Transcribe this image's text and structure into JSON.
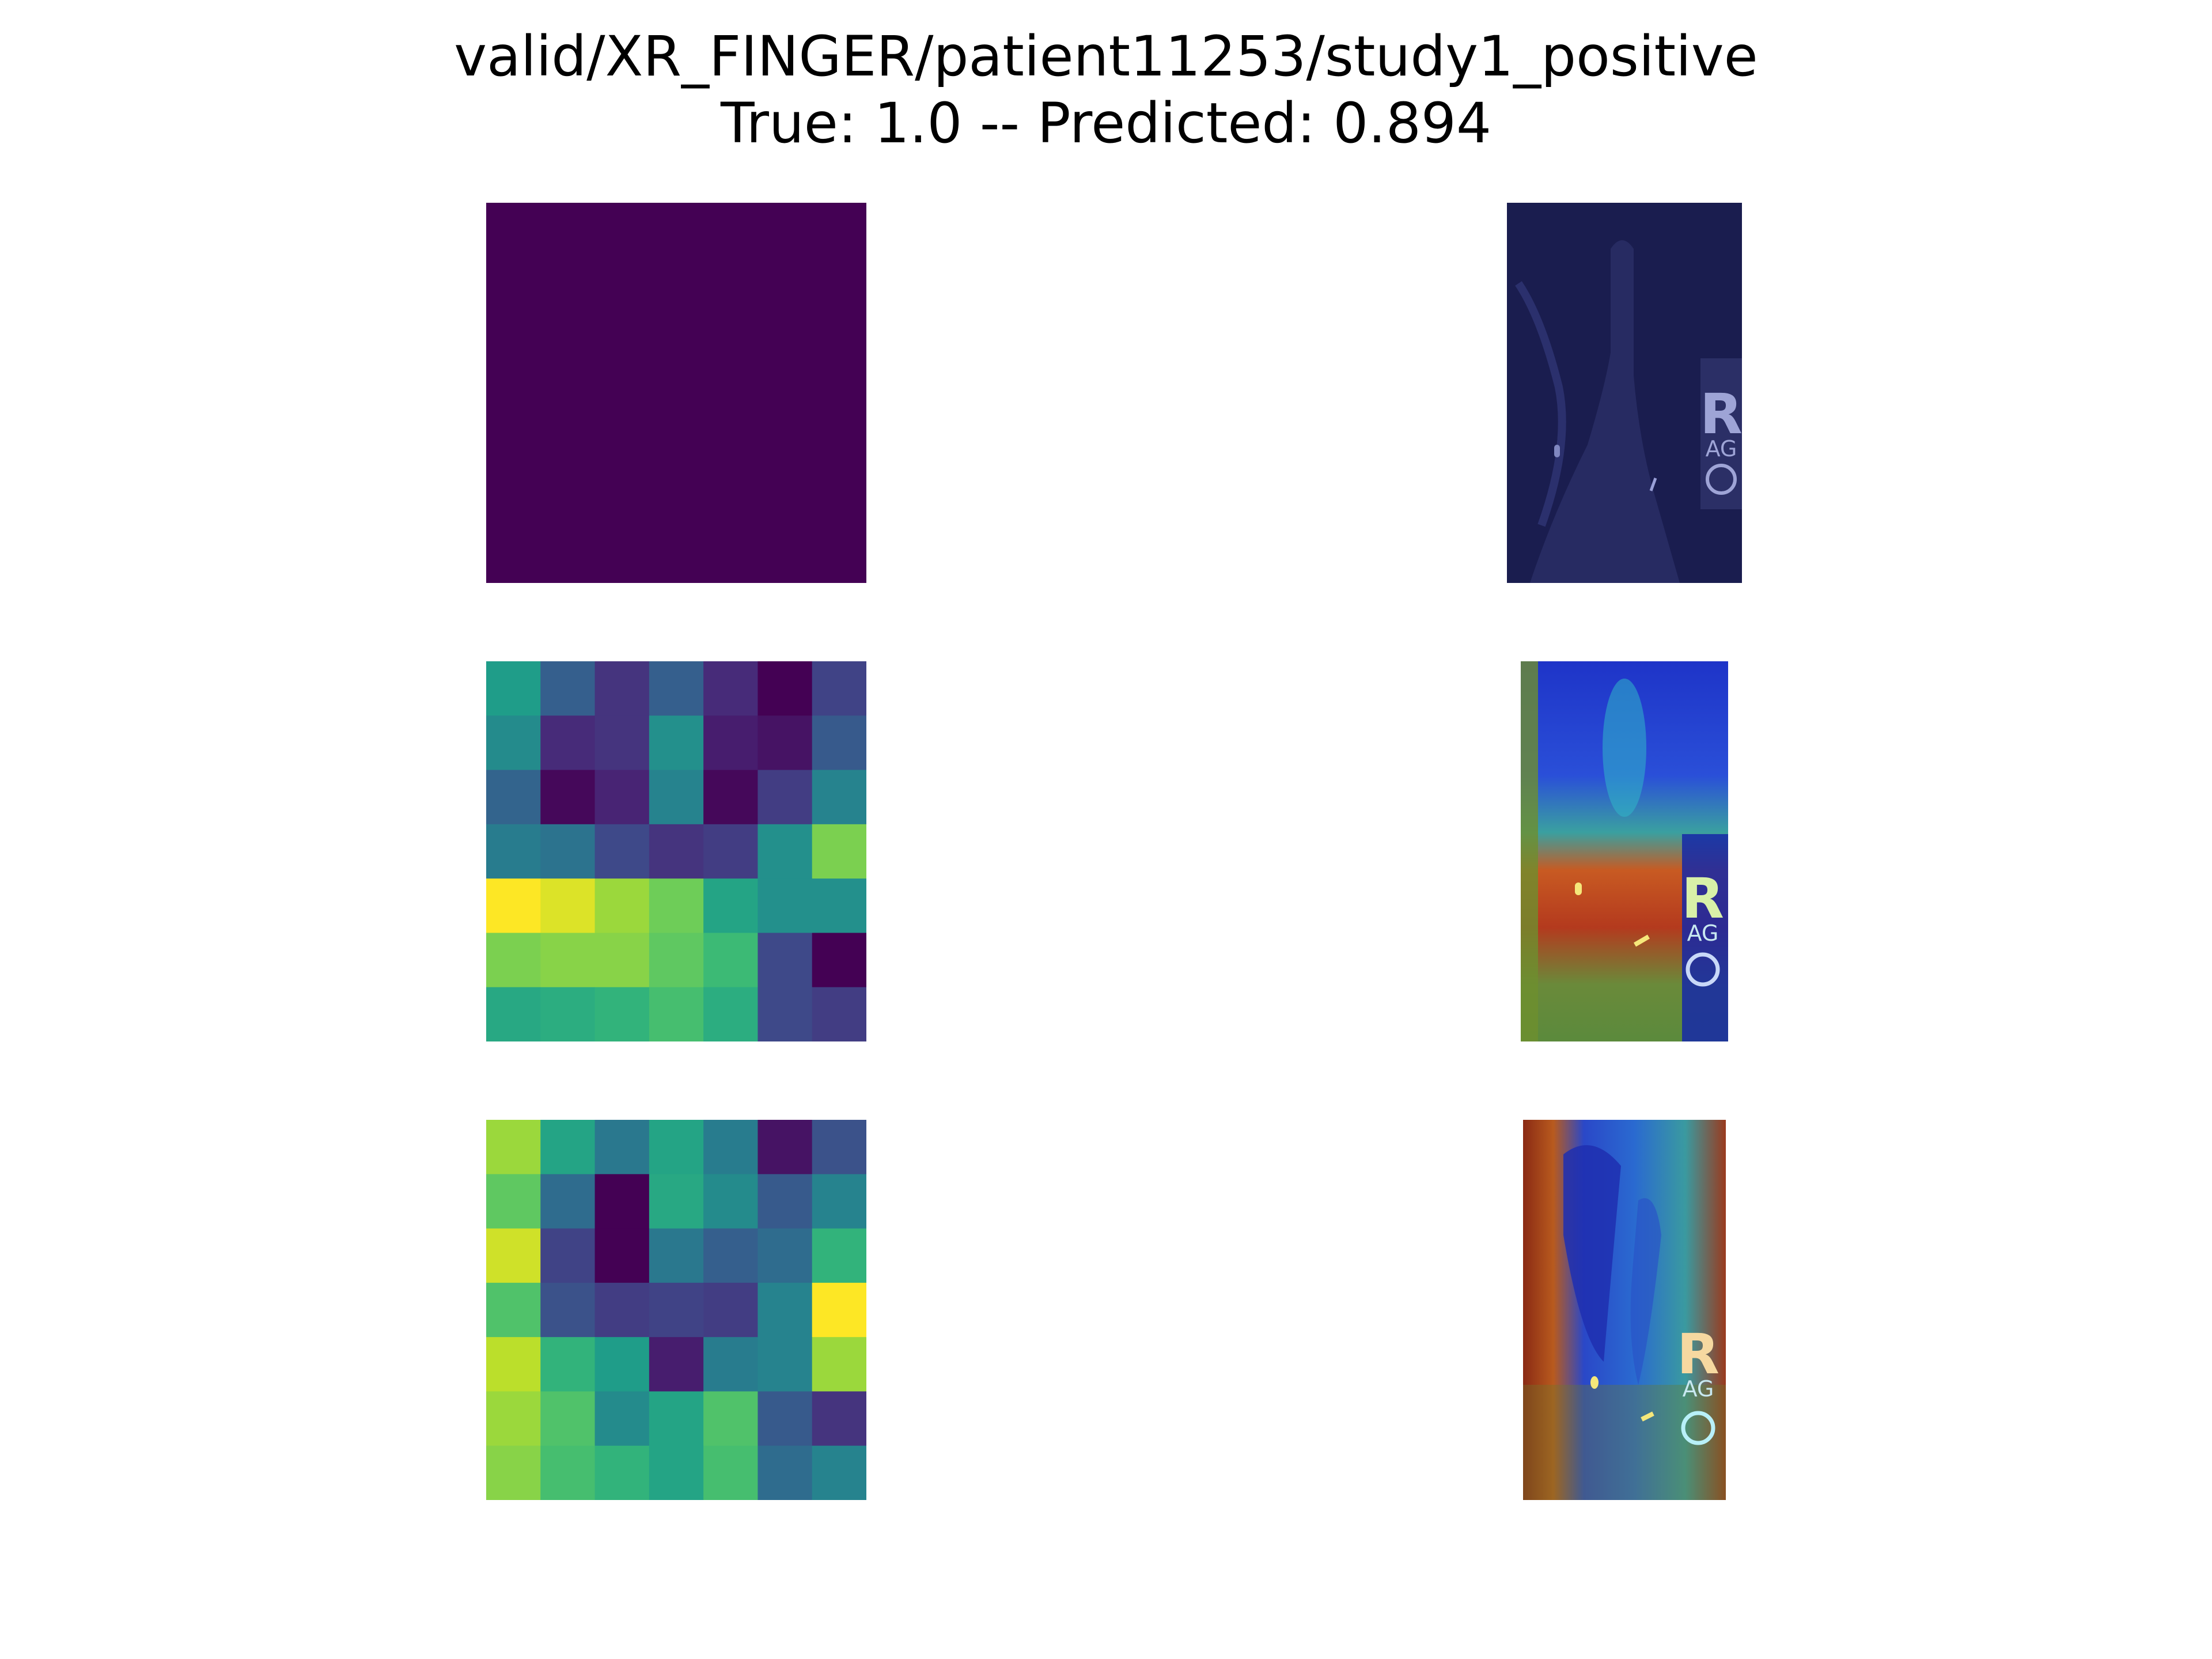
{
  "title": {
    "line1": "valid/XR_FINGER/patient11253/study1_positive",
    "line2": "True: 1.0 -- Predicted: 0.894"
  },
  "chart_data": [
    {
      "type": "heatmap",
      "colormap": "viridis",
      "rows": 1,
      "cols": 1,
      "values": [
        [
          0.0
        ]
      ]
    },
    {
      "type": "heatmap",
      "colormap": "viridis",
      "rows": 7,
      "cols": 7,
      "values": [
        [
          0.55,
          0.3,
          0.15,
          0.3,
          0.12,
          0.0,
          0.2
        ],
        [
          0.48,
          0.12,
          0.15,
          0.5,
          0.08,
          0.05,
          0.28
        ],
        [
          0.32,
          0.02,
          0.1,
          0.45,
          0.02,
          0.18,
          0.45
        ],
        [
          0.42,
          0.38,
          0.22,
          0.15,
          0.18,
          0.5,
          0.8
        ],
        [
          1.0,
          0.95,
          0.85,
          0.78,
          0.58,
          0.5,
          0.5
        ],
        [
          0.8,
          0.82,
          0.82,
          0.75,
          0.68,
          0.22,
          0.0
        ],
        [
          0.6,
          0.62,
          0.65,
          0.7,
          0.62,
          0.22,
          0.18
        ]
      ]
    },
    {
      "type": "heatmap",
      "colormap": "viridis",
      "rows": 7,
      "cols": 7,
      "values": [
        [
          0.85,
          0.58,
          0.4,
          0.58,
          0.42,
          0.05,
          0.25
        ],
        [
          0.75,
          0.35,
          0.0,
          0.6,
          0.48,
          0.28,
          0.45
        ],
        [
          0.93,
          0.2,
          0.0,
          0.4,
          0.3,
          0.35,
          0.65
        ],
        [
          0.72,
          0.25,
          0.18,
          0.2,
          0.18,
          0.45,
          1.0
        ],
        [
          0.9,
          0.65,
          0.55,
          0.08,
          0.42,
          0.45,
          0.85
        ],
        [
          0.85,
          0.72,
          0.48,
          0.58,
          0.72,
          0.28,
          0.15
        ],
        [
          0.82,
          0.7,
          0.65,
          0.58,
          0.7,
          0.35,
          0.45
        ]
      ]
    }
  ],
  "xrays": [
    {
      "overlay": "dark-blue",
      "marker_letter": "R",
      "marker_initials": "AG"
    },
    {
      "overlay": "jet-heatmap",
      "marker_letter": "R",
      "marker_initials": "AG"
    },
    {
      "overlay": "jet-heatmap",
      "marker_letter": "R",
      "marker_initials": "AG"
    }
  ],
  "colors": {
    "background": "#ffffff",
    "text": "#000000"
  }
}
